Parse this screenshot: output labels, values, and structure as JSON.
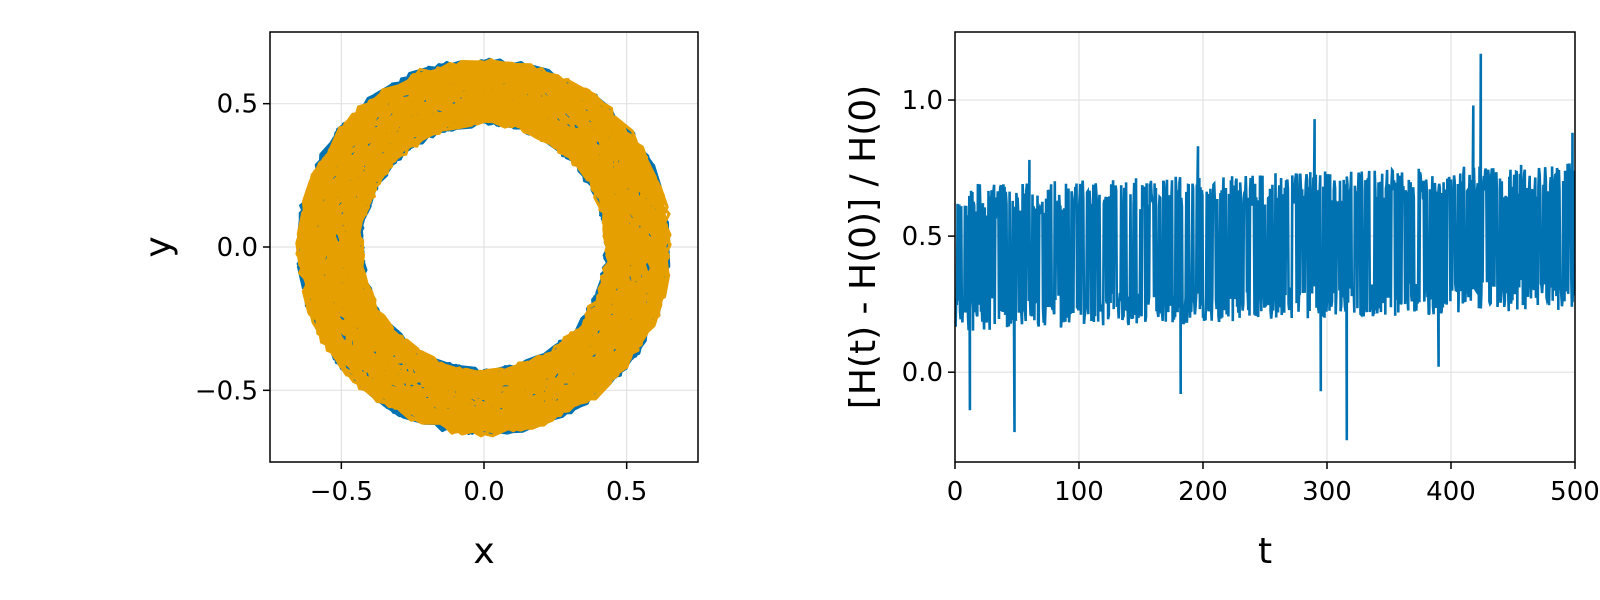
{
  "chart_data": [
    {
      "type": "line",
      "title": "",
      "xlabel": "x",
      "ylabel": "y",
      "xlim": [
        -0.75,
        0.75
      ],
      "ylim": [
        -0.75,
        0.75
      ],
      "xticks": [
        -0.5,
        0.0,
        0.5
      ],
      "yticks": [
        -0.5,
        0.0,
        0.5
      ],
      "xtick_labels": [
        "−0.5",
        "0.0",
        "0.5"
      ],
      "ytick_labels": [
        "−0.5",
        "0.0",
        "0.5"
      ],
      "grid": true,
      "series": [
        {
          "color": "#0072b2",
          "shape": "noisy ring",
          "center": [
            0.0,
            0.0
          ],
          "inner_radius": 0.42,
          "outer_radius": 0.66
        },
        {
          "color": "#e69f00",
          "shape": "noisy ring",
          "center": [
            0.0,
            0.0
          ],
          "inner_radius": 0.42,
          "outer_radius": 0.66
        }
      ]
    },
    {
      "type": "line",
      "title": "",
      "xlabel": "t",
      "ylabel": "[H(t) - H(0)] / H(0)",
      "xlim": [
        0,
        500
      ],
      "ylim": [
        -0.33,
        1.25
      ],
      "xticks": [
        0,
        100,
        200,
        300,
        400,
        500
      ],
      "yticks": [
        0.0,
        0.5,
        1.0
      ],
      "xtick_labels": [
        "0",
        "100",
        "200",
        "300",
        "400",
        "500"
      ],
      "ytick_labels": [
        "0.0",
        "0.5",
        "1.0"
      ],
      "grid": true,
      "series": [
        {
          "color": "#0072b2",
          "x_range": [
            0,
            500
          ],
          "typical_band": [
            0.15,
            0.75
          ],
          "notable_points": [
            {
              "t": 2,
              "v": 0.55
            },
            {
              "t": 12,
              "v": -0.14
            },
            {
              "t": 48,
              "v": -0.22
            },
            {
              "t": 60,
              "v": 0.78
            },
            {
              "t": 182,
              "v": -0.08
            },
            {
              "t": 196,
              "v": 0.83
            },
            {
              "t": 290,
              "v": 0.93
            },
            {
              "t": 295,
              "v": -0.07
            },
            {
              "t": 316,
              "v": -0.25
            },
            {
              "t": 390,
              "v": 0.02
            },
            {
              "t": 418,
              "v": 0.98
            },
            {
              "t": 424,
              "v": 1.17
            },
            {
              "t": 498,
              "v": 0.88
            }
          ]
        }
      ]
    }
  ]
}
